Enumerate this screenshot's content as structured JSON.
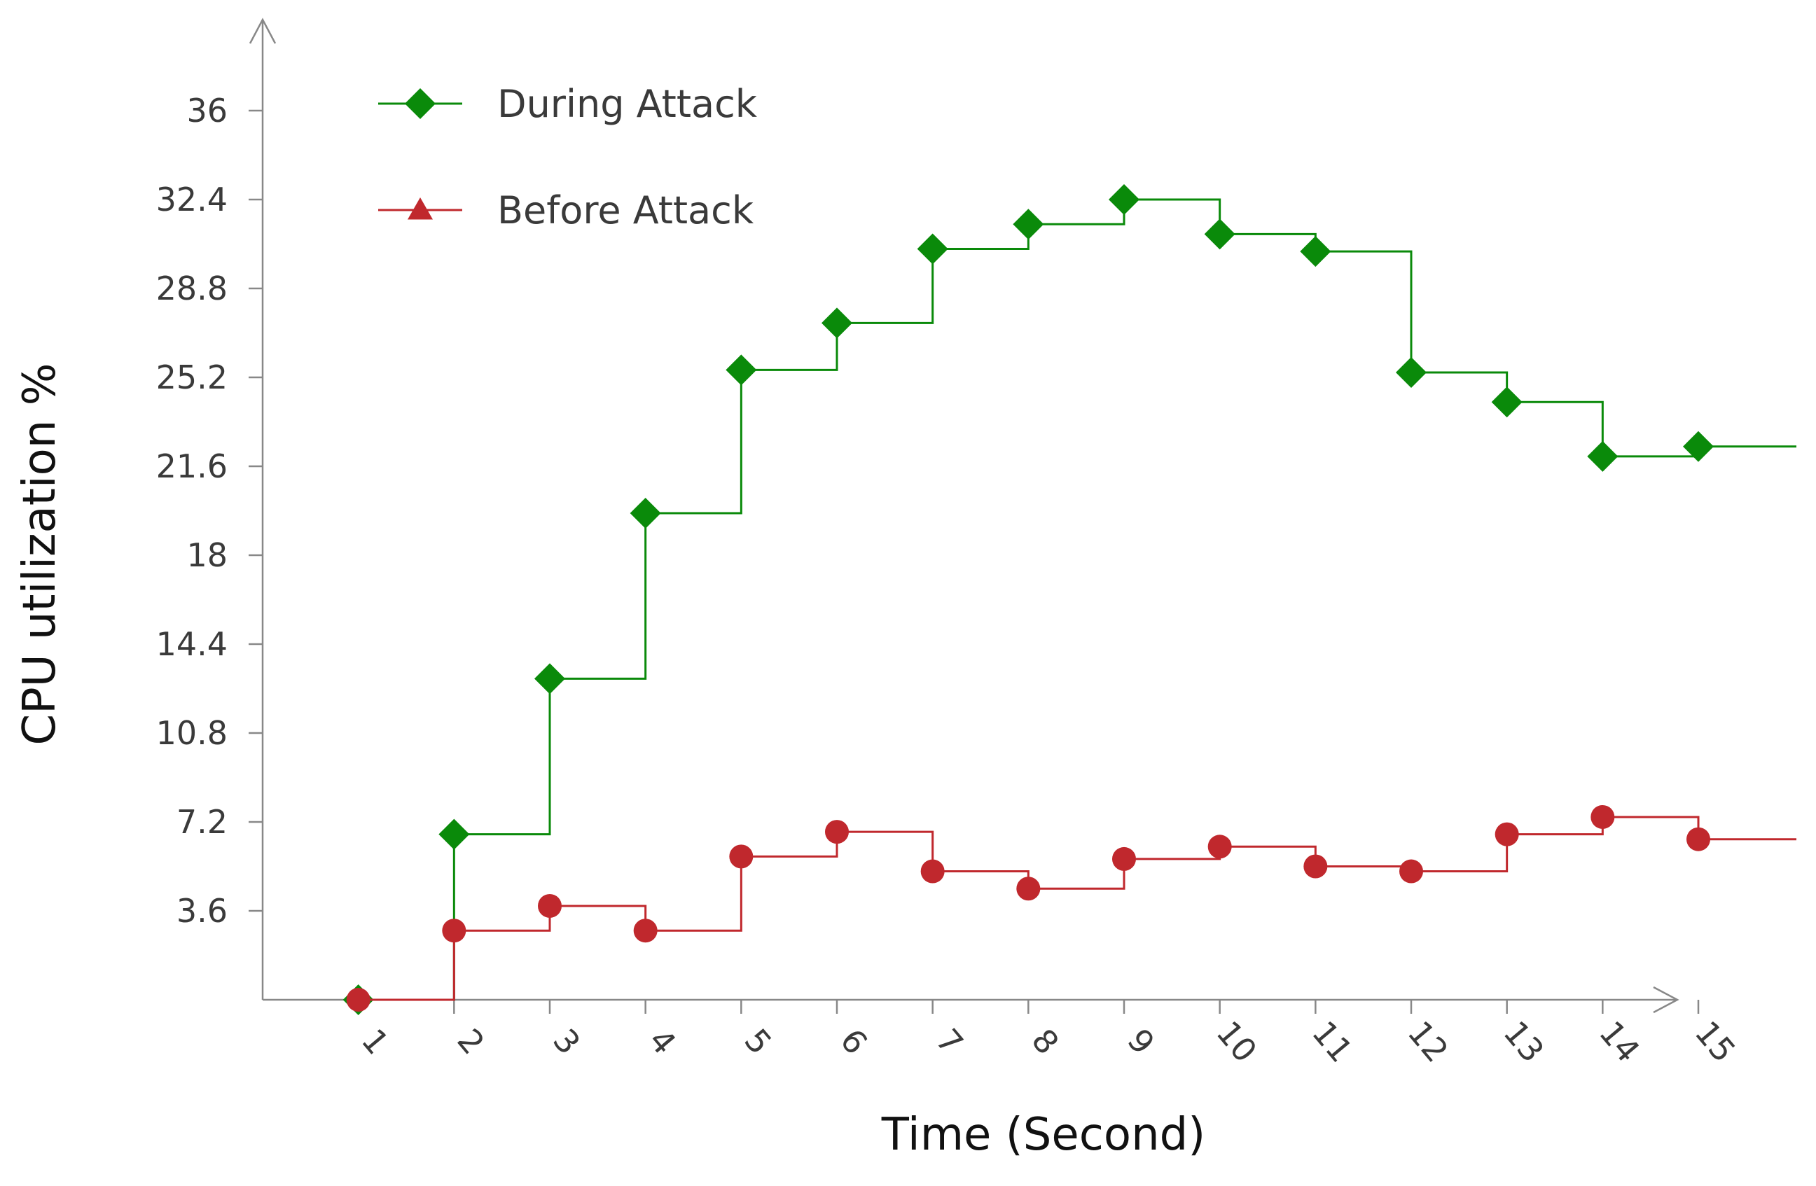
{
  "chart_data": {
    "type": "line",
    "step": "post",
    "title": "",
    "xlabel": "Time (Second)",
    "ylabel": "CPU utilization %",
    "x": [
      1,
      2,
      3,
      4,
      5,
      6,
      7,
      8,
      9,
      10,
      11,
      12,
      13,
      14,
      15
    ],
    "x_tick_labels": [
      "1",
      "2",
      "3",
      "4",
      "5",
      "6",
      "7",
      "8",
      "9",
      "10",
      "11",
      "12",
      "13",
      "14",
      "15"
    ],
    "y_ticks": [
      3.6,
      7.2,
      10.8,
      14.4,
      18,
      21.6,
      25.2,
      28.8,
      32.4,
      36
    ],
    "y_tick_labels": [
      "3.6",
      "7.2",
      "10.8",
      "14.4",
      "18",
      "21.6",
      "25.2",
      "28.8",
      "32.4",
      "36"
    ],
    "xlim": [
      0,
      15
    ],
    "ylim": [
      0,
      39
    ],
    "grid": false,
    "legend_position": "top-left",
    "series": [
      {
        "name": "During Attack",
        "color": "#0a8a0a",
        "marker": "diamond",
        "legend_marker": "diamond",
        "values": [
          0,
          6.7,
          13,
          19.7,
          25.5,
          27.4,
          30.4,
          31.4,
          32.4,
          31,
          30.3,
          25.4,
          24.2,
          22,
          22.4
        ]
      },
      {
        "name": "Before Attack",
        "color": "#c0282d",
        "marker": "circle",
        "legend_marker": "triangle",
        "values": [
          0,
          2.8,
          3.8,
          2.8,
          5.8,
          6.8,
          5.2,
          4.5,
          5.7,
          6.2,
          5.4,
          5.2,
          6.7,
          7.4,
          6.5
        ]
      }
    ]
  }
}
